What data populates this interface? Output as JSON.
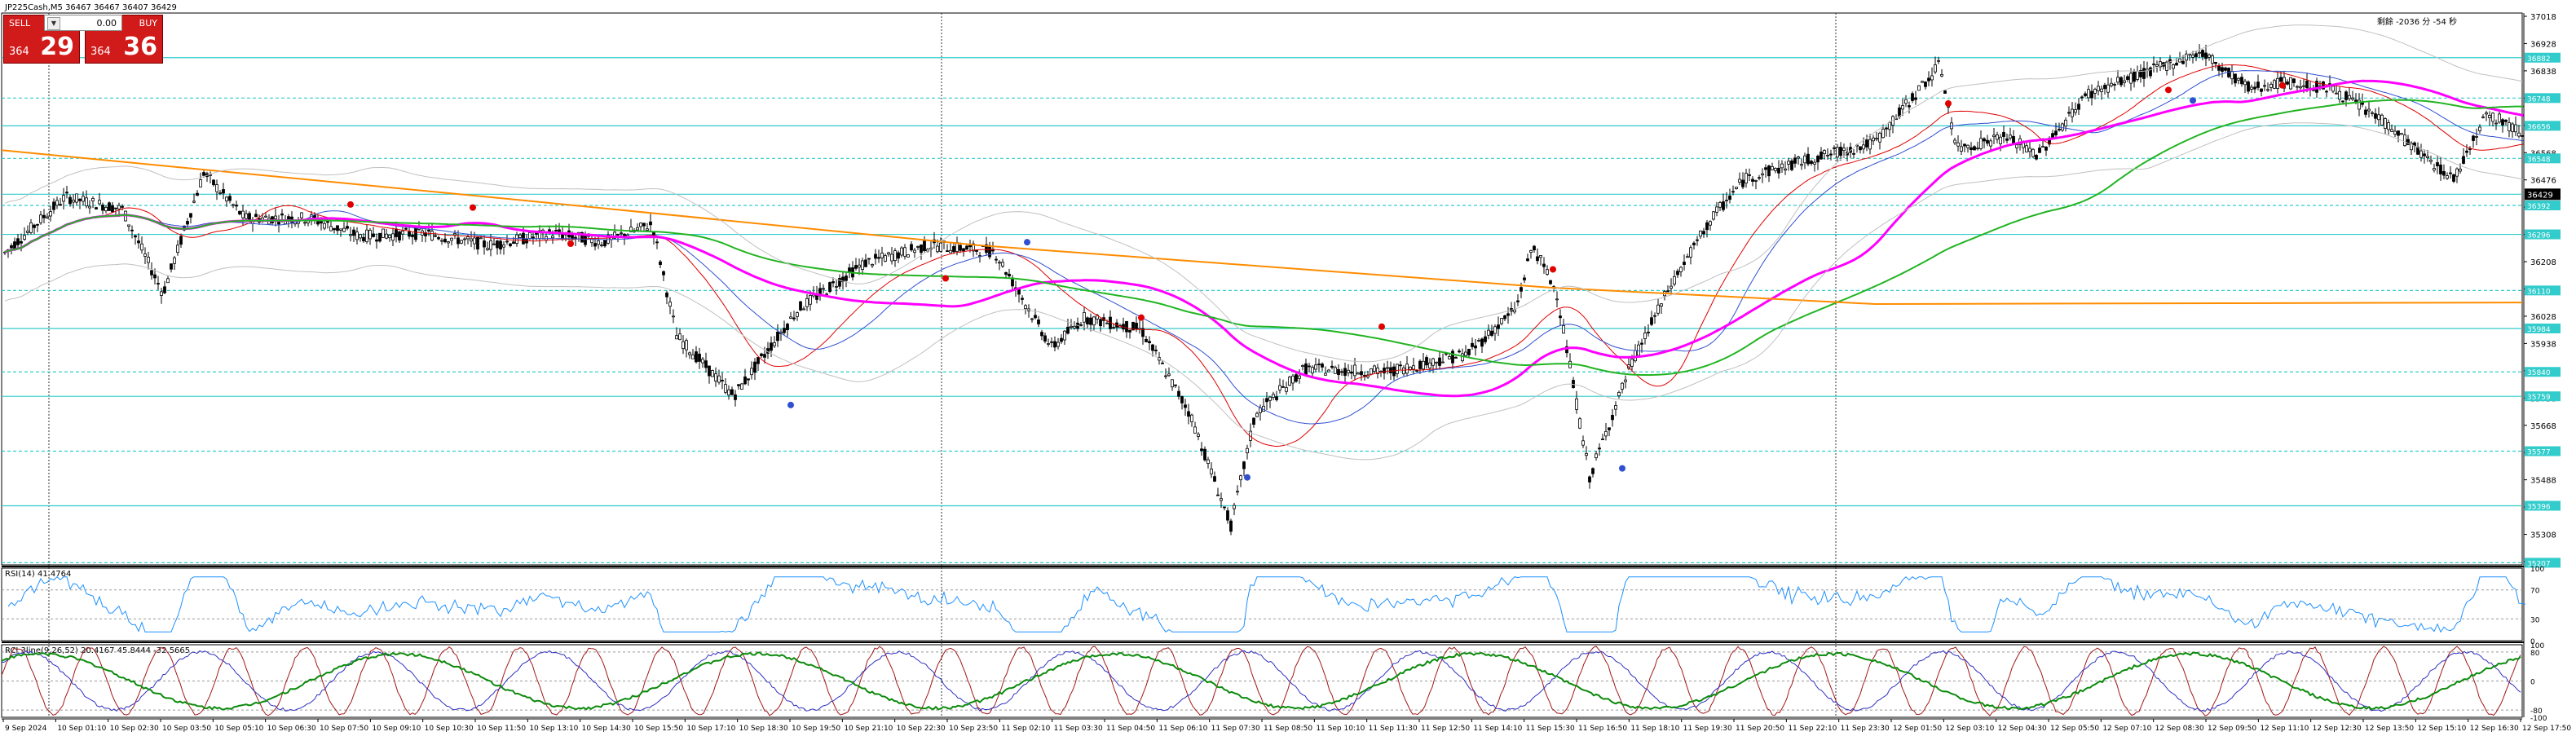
{
  "window": {
    "title": "JP225Cash,M5  36467 36467 36407 36429"
  },
  "trade_panel": {
    "sell_label": "SELL",
    "buy_label": "BUY",
    "volume": "0.00",
    "sell_price_small": "364",
    "sell_price_big": "29",
    "buy_price_small": "364",
    "buy_price_big": "36",
    "arrow_icon": "chevron-down-icon"
  },
  "countdown_text": "剩餘 -2036 分 -54 秒",
  "price_axis": {
    "labels": [
      "37018",
      "36928",
      "36838",
      "36748",
      "36658",
      "36568",
      "36476",
      "36386",
      "36296",
      "36208",
      "36118",
      "36028",
      "35938",
      "35848",
      "35758",
      "35668",
      "35578",
      "35488",
      "35398",
      "35308",
      "35218"
    ]
  },
  "level_tags": [
    "36882",
    "36748",
    "36656",
    "36548",
    "36429",
    "36392",
    "36296",
    "36110",
    "35984",
    "35840",
    "35759",
    "35577",
    "35396",
    "35207"
  ],
  "current_price": "36429",
  "rsi": {
    "label": "RSI(14) 41.4764",
    "levels": [
      "100",
      "70",
      "30",
      "0"
    ]
  },
  "stoch": {
    "label": "RCI 3line(9,26,52) 20.4167 45.8444 -32.5665",
    "levels": [
      "100",
      "80",
      "0",
      "-80",
      "-100"
    ]
  },
  "time_axis": [
    "9 Sep 2024",
    "10 Sep 01:10",
    "10 Sep 02:30",
    "10 Sep 03:50",
    "10 Sep 05:10",
    "10 Sep 06:30",
    "10 Sep 07:50",
    "10 Sep 09:10",
    "10 Sep 10:30",
    "10 Sep 11:50",
    "10 Sep 13:10",
    "10 Sep 14:30",
    "10 Sep 15:50",
    "10 Sep 17:10",
    "10 Sep 18:30",
    "10 Sep 19:50",
    "10 Sep 21:10",
    "10 Sep 22:30",
    "10 Sep 23:50",
    "11 Sep 02:10",
    "11 Sep 03:30",
    "11 Sep 04:50",
    "11 Sep 06:10",
    "11 Sep 07:30",
    "11 Sep 08:50",
    "11 Sep 10:10",
    "11 Sep 11:30",
    "11 Sep 12:50",
    "11 Sep 14:10",
    "11 Sep 15:30",
    "11 Sep 16:50",
    "11 Sep 18:10",
    "11 Sep 19:30",
    "11 Sep 20:50",
    "11 Sep 22:10",
    "11 Sep 23:30",
    "12 Sep 01:50",
    "12 Sep 03:10",
    "12 Sep 04:30",
    "12 Sep 05:50",
    "12 Sep 07:10",
    "12 Sep 08:30",
    "12 Sep 09:50",
    "12 Sep 11:10",
    "12 Sep 12:30",
    "12 Sep 13:50",
    "12 Sep 15:10",
    "12 Sep 16:30",
    "12 Sep 17:50"
  ],
  "colors": {
    "cyan": "#33cccc",
    "candle": "#000000",
    "magenta": "#ff00ff",
    "orange": "#ff8c00",
    "green": "#22b422",
    "blue": "#3050d0",
    "red": "#e00000",
    "rsi": "#1e90ff",
    "stoch_red": "#a01818",
    "stoch_blue": "#3030c0",
    "stoch_green": "#0b8a0b",
    "panel_red": "#d11a1a"
  },
  "chart_data": {
    "type": "candlestick",
    "symbol": "JP225Cash",
    "timeframe": "M5",
    "ohlc_last": {
      "open": 36467,
      "high": 36467,
      "low": 36407,
      "close": 36429
    },
    "y_range": [
      35200,
      37030
    ],
    "anchors": [
      [
        0,
        36220
      ],
      [
        80,
        36420
      ],
      [
        150,
        36380
      ],
      [
        200,
        36100
      ],
      [
        250,
        36500
      ],
      [
        300,
        36350
      ],
      [
        380,
        36350
      ],
      [
        440,
        36290
      ],
      [
        520,
        36300
      ],
      [
        600,
        36260
      ],
      [
        680,
        36300
      ],
      [
        740,
        36270
      ],
      [
        800,
        36330
      ],
      [
        830,
        35960
      ],
      [
        900,
        35760
      ],
      [
        980,
        36050
      ],
      [
        1060,
        36200
      ],
      [
        1140,
        36260
      ],
      [
        1220,
        36240
      ],
      [
        1290,
        35920
      ],
      [
        1330,
        36020
      ],
      [
        1400,
        35980
      ],
      [
        1460,
        35700
      ],
      [
        1510,
        35330
      ],
      [
        1540,
        35700
      ],
      [
        1600,
        35850
      ],
      [
        1700,
        35840
      ],
      [
        1800,
        35900
      ],
      [
        1860,
        36050
      ],
      [
        1880,
        36260
      ],
      [
        1910,
        36100
      ],
      [
        1950,
        35490
      ],
      [
        2000,
        35860
      ],
      [
        2050,
        36130
      ],
      [
        2100,
        36350
      ],
      [
        2140,
        36480
      ],
      [
        2200,
        36530
      ],
      [
        2300,
        36600
      ],
      [
        2380,
        36860
      ],
      [
        2400,
        36580
      ],
      [
        2460,
        36620
      ],
      [
        2500,
        36560
      ],
      [
        2560,
        36760
      ],
      [
        2640,
        36840
      ],
      [
        2700,
        36900
      ],
      [
        2760,
        36780
      ],
      [
        2800,
        36800
      ],
      [
        2860,
        36780
      ],
      [
        2920,
        36680
      ],
      [
        2980,
        36540
      ],
      [
        3010,
        36480
      ],
      [
        3050,
        36700
      ],
      [
        3090,
        36640
      ],
      [
        3110,
        36640
      ]
    ],
    "levels": [
      36882,
      36748,
      36656,
      36548,
      36429,
      36392,
      36296,
      36110,
      35984,
      35840,
      35759,
      35577,
      35396,
      35207
    ],
    "indicators": [
      "RSI(14)",
      "RCI 3line(9,26,52)"
    ],
    "rsi_last": 41.4764,
    "rci_last": [
      20.4167,
      45.8444,
      -32.5665
    ]
  }
}
